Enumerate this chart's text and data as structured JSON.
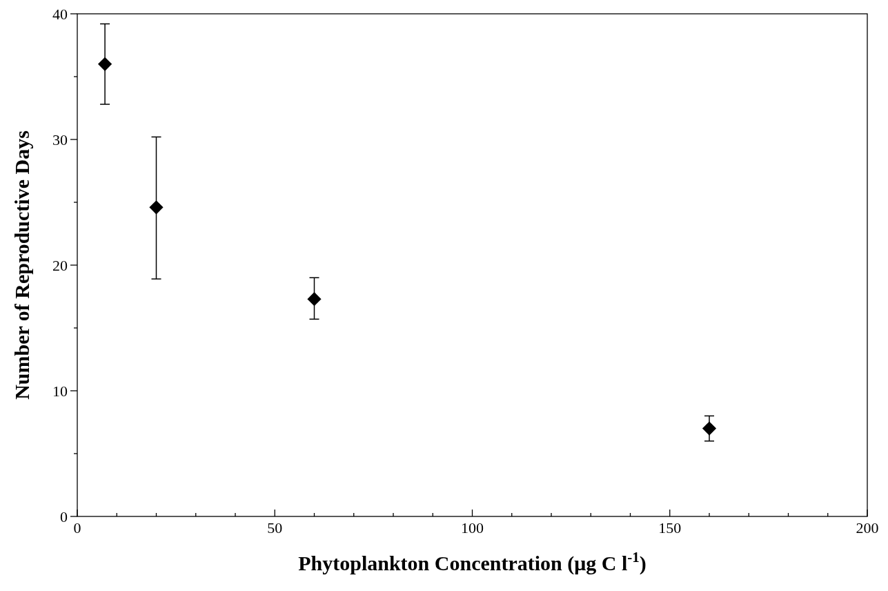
{
  "chart_data": {
    "type": "scatter",
    "xlabel": "Phytoplankton Concentration (μg C l$^{-1}$)",
    "ylabel": "Number of Reproductive Days",
    "x": [
      7,
      20,
      60,
      160
    ],
    "values": [
      36,
      24.6,
      17.3,
      7
    ],
    "errors": [
      [
        32.8,
        39.2
      ],
      [
        18.9,
        30.2
      ],
      [
        15.7,
        19
      ],
      [
        6,
        8
      ]
    ],
    "color": "#000000",
    "marker": "diamond",
    "grid": false,
    "xlim": [
      0,
      200
    ],
    "xticks": [
      0,
      {
        "value": 10,
        "label": null
      },
      {
        "value": 20,
        "label": null
      },
      {
        "value": 30,
        "label": null
      },
      {
        "value": 40,
        "label": null
      },
      50,
      {
        "value": 60,
        "label": null
      },
      {
        "value": 70,
        "label": null
      },
      {
        "value": 80,
        "label": null
      },
      {
        "value": 90,
        "label": null
      },
      100,
      {
        "value": 110,
        "label": null
      },
      {
        "value": 120,
        "label": null
      },
      {
        "value": 130,
        "label": null
      },
      {
        "value": 140,
        "label": null
      },
      150,
      {
        "value": 160,
        "label": null
      },
      {
        "value": 170,
        "label": null
      },
      {
        "value": 180,
        "label": null
      },
      {
        "value": 190,
        "label": null
      },
      200
    ],
    "ylim": [
      0,
      40
    ],
    "yticks": [
      0,
      {
        "value": 5,
        "label": null
      },
      10,
      {
        "value": 15,
        "label": null
      },
      20,
      {
        "value": 25,
        "label": null
      },
      30,
      {
        "value": 35,
        "label": null
      },
      40
    ]
  }
}
